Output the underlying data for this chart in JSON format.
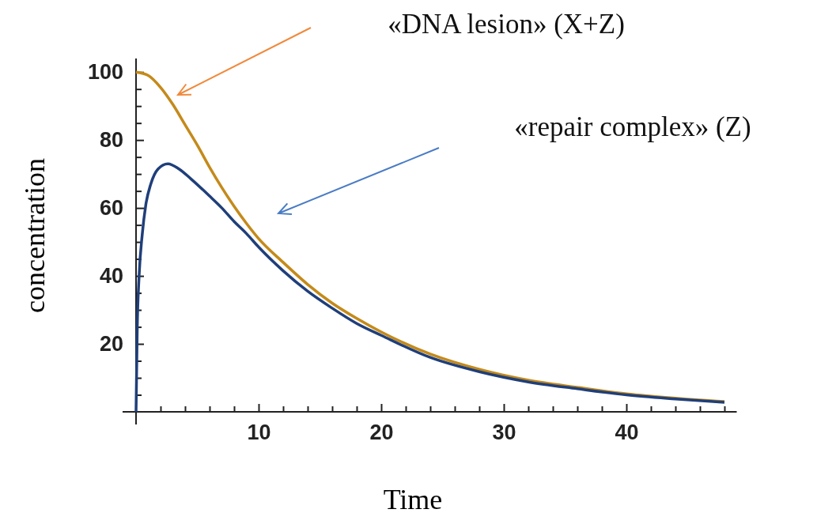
{
  "chart_data": {
    "type": "line",
    "xlabel": "Time",
    "ylabel": "concentration",
    "xlim": [
      0,
      49
    ],
    "ylim": [
      0,
      104
    ],
    "xticks": [
      {
        "value": 2,
        "label": null
      },
      {
        "value": 4,
        "label": null
      },
      {
        "value": 6,
        "label": null
      },
      {
        "value": 8,
        "label": null
      },
      10,
      {
        "value": 12,
        "label": null
      },
      {
        "value": 14,
        "label": null
      },
      {
        "value": 16,
        "label": null
      },
      {
        "value": 18,
        "label": null
      },
      20,
      {
        "value": 22,
        "label": null
      },
      {
        "value": 24,
        "label": null
      },
      {
        "value": 26,
        "label": null
      },
      {
        "value": 28,
        "label": null
      },
      30,
      {
        "value": 32,
        "label": null
      },
      {
        "value": 34,
        "label": null
      },
      {
        "value": 36,
        "label": null
      },
      {
        "value": 38,
        "label": null
      },
      40,
      {
        "value": 42,
        "label": null
      },
      {
        "value": 44,
        "label": null
      },
      {
        "value": 46,
        "label": null
      },
      {
        "value": 48,
        "label": null
      }
    ],
    "yticks": [
      {
        "value": 5,
        "label": null
      },
      {
        "value": 10,
        "label": null
      },
      {
        "value": 15,
        "label": null
      },
      20,
      {
        "value": 25,
        "label": null
      },
      {
        "value": 30,
        "label": null
      },
      {
        "value": 35,
        "label": null
      },
      40,
      {
        "value": 45,
        "label": null
      },
      {
        "value": 50,
        "label": null
      },
      {
        "value": 55,
        "label": null
      },
      60,
      {
        "value": 65,
        "label": null
      },
      {
        "value": 70,
        "label": null
      },
      {
        "value": 75,
        "label": null
      },
      80,
      {
        "value": 85,
        "label": null
      },
      {
        "value": 90,
        "label": null
      },
      {
        "value": 95,
        "label": null
      },
      100
    ],
    "series": [
      {
        "color": "#c48a1a",
        "x": [
          0,
          1,
          2,
          3,
          4,
          5,
          6,
          7,
          8,
          9,
          10,
          12,
          14,
          16,
          18,
          20,
          24,
          28,
          32,
          36,
          40,
          44,
          48
        ],
        "values": [
          100,
          99,
          95.5,
          90.5,
          84.5,
          78.5,
          72,
          66,
          60.5,
          55.5,
          51,
          44,
          37.5,
          32,
          27.5,
          23.5,
          17,
          12.5,
          9.3,
          7.2,
          5.3,
          4,
          3
        ]
      },
      {
        "color": "#1f3f7a",
        "x": [
          0,
          0.1,
          0.25,
          0.5,
          0.8,
          1.2,
          1.8,
          2.6,
          3.5,
          4.5,
          6,
          7,
          8,
          9,
          10,
          12,
          14,
          16,
          18,
          20,
          24,
          28,
          32,
          36,
          40,
          44,
          48
        ],
        "values": [
          0,
          25,
          40,
          52,
          61,
          67,
          71.5,
          73,
          71.5,
          68.5,
          63.5,
          60,
          56,
          52.5,
          48.5,
          41.5,
          35.5,
          30.5,
          26,
          22.5,
          16,
          11.8,
          8.8,
          6.8,
          5,
          3.8,
          2.8
        ]
      }
    ],
    "annotations": [
      "«DNA lesion» (X+Z)",
      "«repair complex» (Z)"
    ],
    "marker": "none",
    "line_style": "solid"
  }
}
